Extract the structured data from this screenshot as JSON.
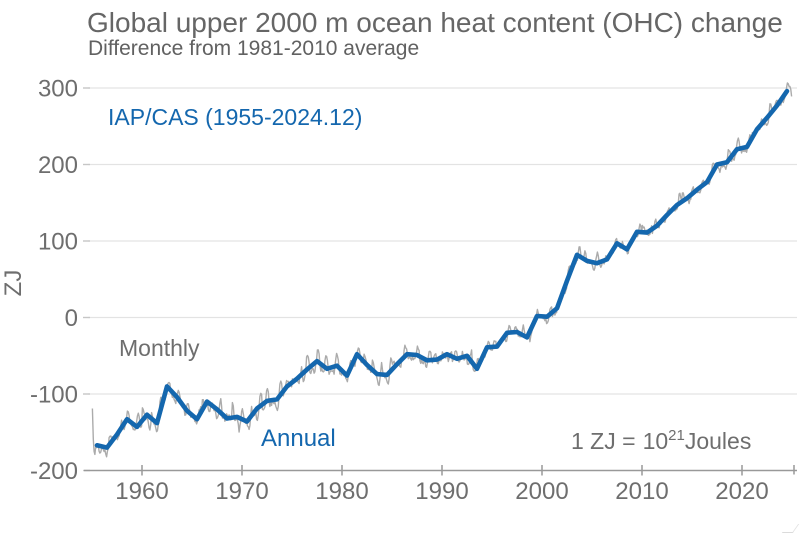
{
  "header": {
    "title": "Global upper 2000 m ocean heat content (OHC) change",
    "subtitle": "Difference from 1981-2010 average"
  },
  "colors": {
    "annual_line": "#1467ae",
    "monthly_line": "#ababab",
    "gridline": "#e3e3e3",
    "axis": "#999999",
    "tick_text": "#6e6e6e",
    "title_text": "#666666"
  },
  "chart_data": {
    "type": "line",
    "title": "Global upper 2000 m ocean heat content (OHC) change",
    "subtitle": "Difference from 1981-2010 average",
    "xlabel": "",
    "ylabel": "ZJ",
    "xlim": [
      1955,
      2025
    ],
    "ylim": [
      -200,
      300
    ],
    "x_ticks": [
      1960,
      1970,
      1980,
      1990,
      2000,
      2010,
      2020
    ],
    "y_ticks": [
      300,
      200,
      100,
      0,
      -100,
      -200
    ],
    "grid": "horizontal only",
    "legend_position": "none (inline text annotations)",
    "annotations": {
      "dataset_label": "IAP/CAS (1955-2024.12)",
      "monthly_label": "Monthly",
      "annual_label": "Annual",
      "unit_note": {
        "prefix": "1 ZJ =",
        "base": "10",
        "exponent": "21",
        "suffix": "Joules"
      }
    },
    "series": [
      {
        "name": "Annual",
        "color": "#1467ae",
        "years": [
          1955,
          1956,
          1957,
          1958,
          1959,
          1960,
          1961,
          1962,
          1963,
          1964,
          1965,
          1966,
          1967,
          1968,
          1969,
          1970,
          1971,
          1972,
          1973,
          1974,
          1975,
          1976,
          1977,
          1978,
          1979,
          1980,
          1981,
          1982,
          1983,
          1984,
          1985,
          1986,
          1987,
          1988,
          1989,
          1990,
          1991,
          1992,
          1993,
          1994,
          1995,
          1996,
          1997,
          1998,
          1999,
          2000,
          2001,
          2002,
          2003,
          2004,
          2005,
          2006,
          2007,
          2008,
          2009,
          2010,
          2011,
          2012,
          2013,
          2014,
          2015,
          2016,
          2017,
          2018,
          2019,
          2020,
          2021,
          2022,
          2023,
          2024
        ],
        "values_zj": [
          -167,
          -170,
          -153,
          -133,
          -143,
          -127,
          -138,
          -90,
          -104,
          -122,
          -133,
          -110,
          -120,
          -132,
          -130,
          -136,
          -119,
          -109,
          -107,
          -90,
          -80,
          -68,
          -57,
          -67,
          -63,
          -76,
          -48,
          -62,
          -74,
          -75,
          -61,
          -48,
          -49,
          -56,
          -55,
          -48,
          -54,
          -50,
          -67,
          -39,
          -38,
          -20,
          -19,
          -26,
          2,
          1,
          12,
          48,
          82,
          74,
          71,
          76,
          97,
          89,
          112,
          111,
          120,
          134,
          147,
          156,
          167,
          177,
          200,
          203,
          220,
          223,
          246,
          261,
          277,
          296
        ]
      },
      {
        "name": "Monthly",
        "color": "#ababab",
        "description": "Thin jagged monthly series oscillating around the annual line; starts near -119 ZJ in early 1955, drops to about -178 ZJ, and ends near +289 ZJ in Dec 2024 after peaking just above +300 ZJ",
        "render": {
          "amp_min_zj": 4,
          "amp_max_zj": 11,
          "subnoise_zj": 3.5,
          "start_offsets_zj": [
            48,
            8,
            -8,
            -12
          ],
          "end_offsets_zj": [
            6,
            2,
            -7
          ]
        }
      }
    ]
  }
}
